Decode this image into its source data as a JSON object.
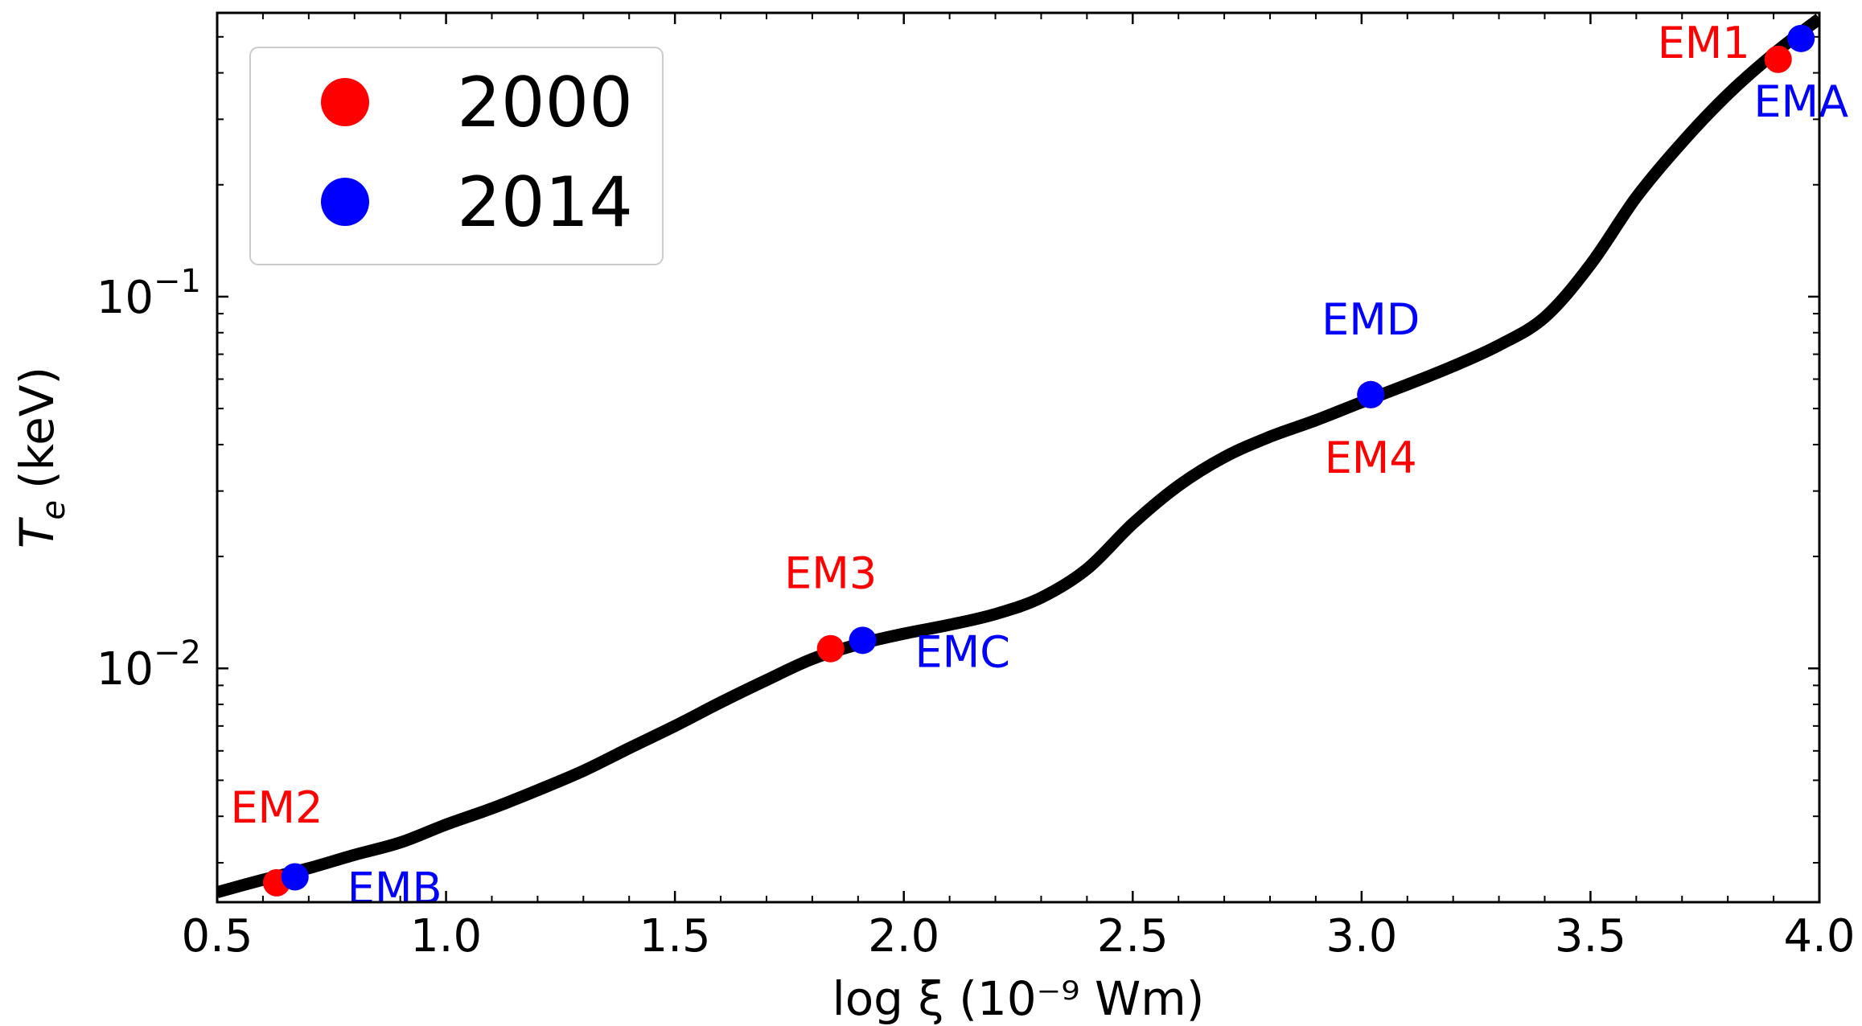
{
  "chart_data": {
    "type": "line",
    "xlabel": "log ξ (10⁻⁹ Wm)",
    "ylabel": "T_e (keV)",
    "ylabel_main": "T",
    "ylabel_sub": "e",
    "ylabel_unit": "(keV)",
    "xlim": [
      0.5,
      4.0
    ],
    "ylim": [
      0.00235,
      0.58
    ],
    "yscale": "log",
    "x_ticks": [
      0.5,
      1.0,
      1.5,
      2.0,
      2.5,
      3.0,
      3.5,
      4.0
    ],
    "x_tick_labels": [
      "0.5",
      "1.0",
      "1.5",
      "2.0",
      "2.5",
      "3.0",
      "3.5",
      "4.0"
    ],
    "y_major_ticks": [
      {
        "value": 0.01,
        "base": "10",
        "exponent": "−2"
      },
      {
        "value": 0.1,
        "base": "10",
        "exponent": "−1"
      }
    ],
    "curve": {
      "color": "#000000",
      "x": [
        0.5,
        0.6,
        0.7,
        0.8,
        0.9,
        1.0,
        1.1,
        1.2,
        1.3,
        1.4,
        1.5,
        1.6,
        1.7,
        1.8,
        1.9,
        2.0,
        2.1,
        2.2,
        2.3,
        2.4,
        2.5,
        2.6,
        2.7,
        2.8,
        2.9,
        3.0,
        3.1,
        3.2,
        3.3,
        3.4,
        3.5,
        3.6,
        3.7,
        3.8,
        3.9,
        4.0
      ],
      "y": [
        0.0025,
        0.0027,
        0.0029,
        0.00315,
        0.0034,
        0.0038,
        0.0042,
        0.0047,
        0.0053,
        0.0061,
        0.007,
        0.0081,
        0.0093,
        0.0106,
        0.0116,
        0.0124,
        0.0131,
        0.014,
        0.0155,
        0.0185,
        0.0245,
        0.031,
        0.037,
        0.042,
        0.0465,
        0.052,
        0.058,
        0.065,
        0.074,
        0.088,
        0.122,
        0.185,
        0.26,
        0.35,
        0.45,
        0.56
      ]
    },
    "series": [
      {
        "name": "2000",
        "color": "#ff0000",
        "points": [
          {
            "label": "EM2",
            "x": 0.63,
            "y": 0.00265,
            "label_position": "above"
          },
          {
            "label": "EM3",
            "x": 1.84,
            "y": 0.0113,
            "label_position": "above"
          },
          {
            "label": "EM4",
            "x": 3.02,
            "y": 0.0545,
            "label_position": "below"
          },
          {
            "label": "EM1",
            "x": 3.91,
            "y": 0.435,
            "label_position": "left"
          }
        ]
      },
      {
        "name": "2014",
        "color": "#0000ff",
        "points": [
          {
            "label": "EMB",
            "x": 0.67,
            "y": 0.00275,
            "label_position": "below-right"
          },
          {
            "label": "EMC",
            "x": 1.91,
            "y": 0.0119,
            "label_position": "below-right"
          },
          {
            "label": "EMD",
            "x": 3.02,
            "y": 0.0545,
            "label_position": "above"
          },
          {
            "label": "EMA",
            "x": 3.96,
            "y": 0.495,
            "label_position": "below"
          }
        ]
      }
    ],
    "legend": {
      "position": "top-left",
      "entries": [
        {
          "label": "2000",
          "color": "#ff0000"
        },
        {
          "label": "2014",
          "color": "#0000ff"
        }
      ]
    }
  }
}
